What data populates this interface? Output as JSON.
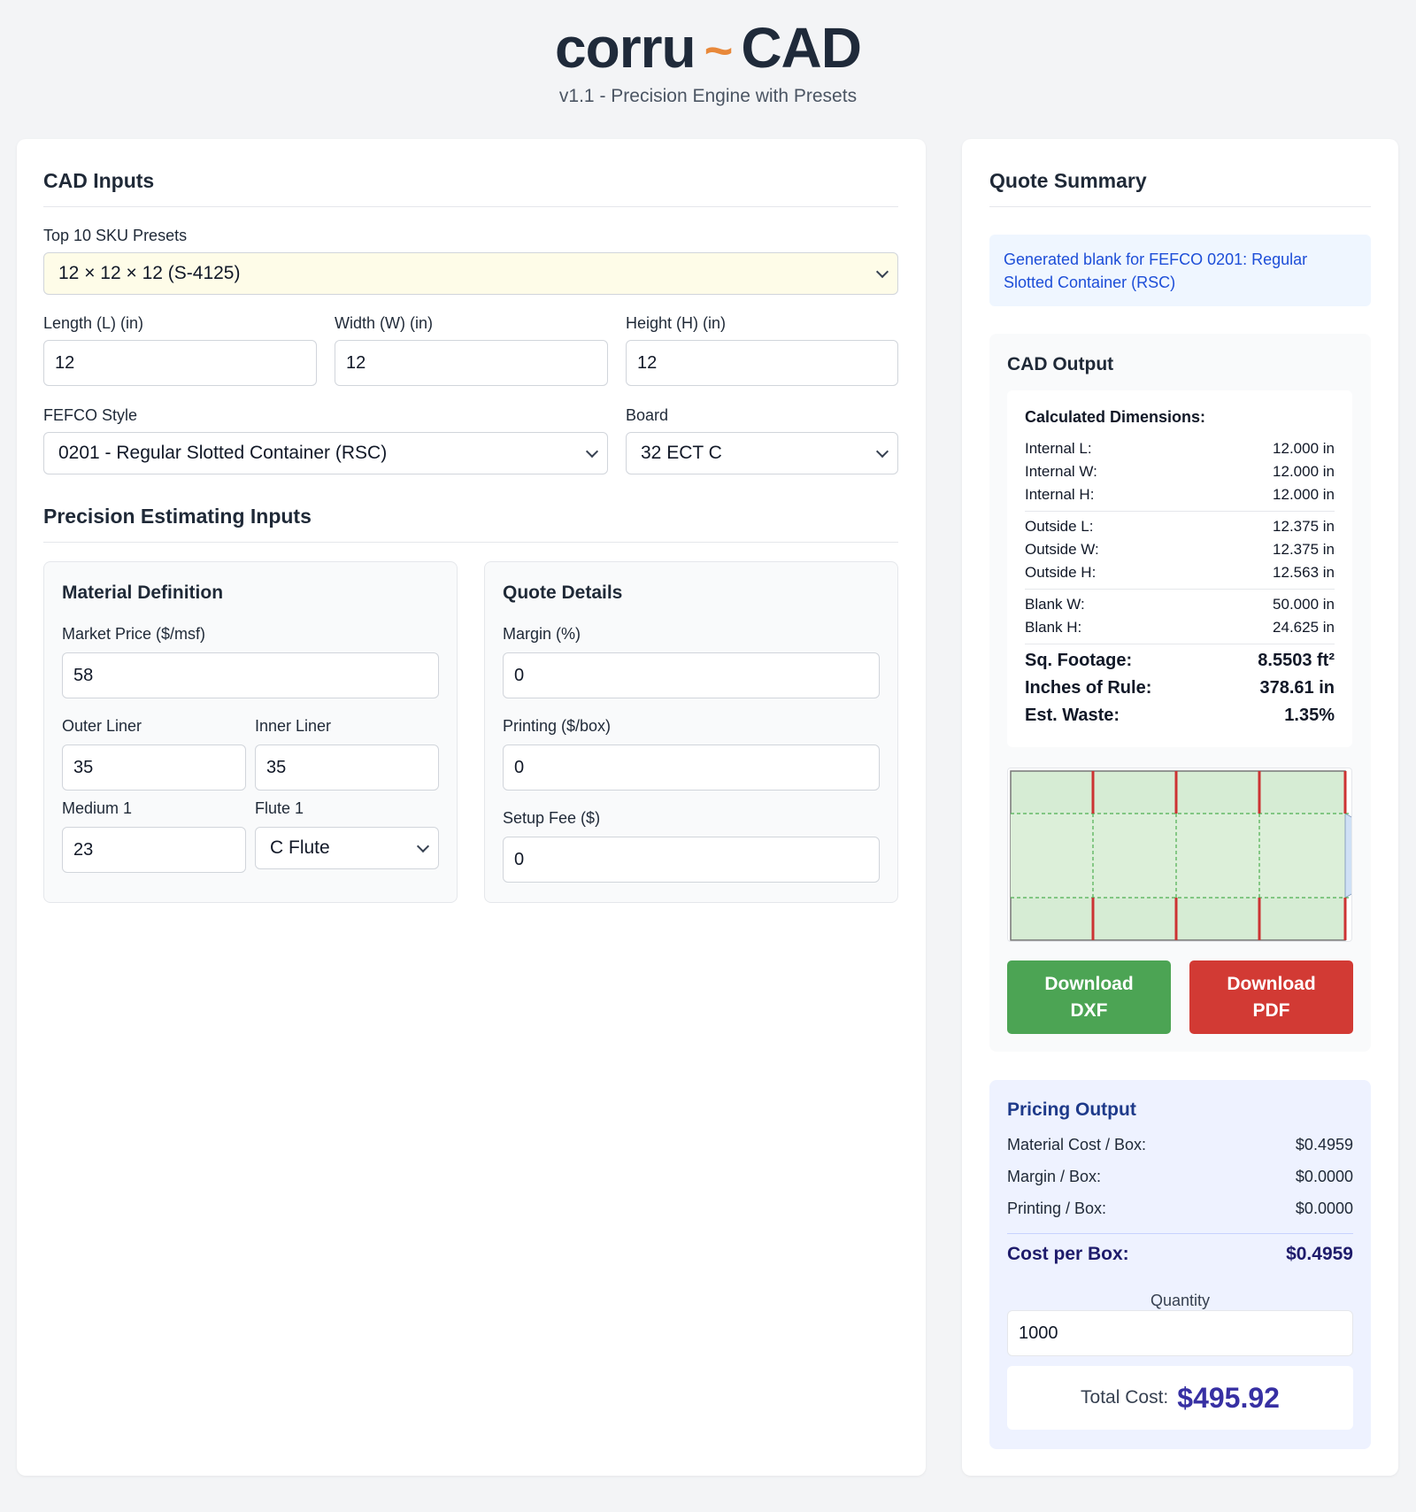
{
  "header": {
    "logo_part1": "corru",
    "logo_tilde": "~",
    "logo_part2": "CAD",
    "subtitle": "v1.1 - Precision Engine with Presets"
  },
  "cad_inputs": {
    "title": "CAD Inputs",
    "presets_label": "Top 10 SKU Presets",
    "preset_value": "12 × 12 × 12 (S-4125)",
    "length_label": "Length (L) (in)",
    "length_value": "12",
    "width_label": "Width (W) (in)",
    "width_value": "12",
    "height_label": "Height (H) (in)",
    "height_value": "12",
    "fefco_label": "FEFCO Style",
    "fefco_value": "0201 - Regular Slotted Container (RSC)",
    "board_label": "Board",
    "board_value": "32 ECT C"
  },
  "precision": {
    "title": "Precision Estimating Inputs",
    "material": {
      "title": "Material Definition",
      "market_price_label": "Market Price ($/msf)",
      "market_price_value": "58",
      "outer_liner_label": "Outer Liner",
      "outer_liner_value": "35",
      "inner_liner_label": "Inner Liner",
      "inner_liner_value": "35",
      "medium_label": "Medium 1",
      "medium_value": "23",
      "flute_label": "Flute 1",
      "flute_value": "C Flute"
    },
    "quote": {
      "title": "Quote Details",
      "margin_label": "Margin (%)",
      "margin_value": "0",
      "printing_label": "Printing ($/box)",
      "printing_value": "0",
      "setup_label": "Setup Fee ($)",
      "setup_value": "0"
    }
  },
  "summary": {
    "title": "Quote Summary",
    "info": "Generated blank for FEFCO 0201: Regular Slotted Container (RSC)",
    "cad_output": {
      "title": "CAD Output",
      "calc_title": "Calculated Dimensions:",
      "rows": [
        {
          "label": "Internal L:",
          "value": "12.000 in"
        },
        {
          "label": "Internal W:",
          "value": "12.000 in"
        },
        {
          "label": "Internal H:",
          "value": "12.000 in"
        },
        {
          "label": "Outside L:",
          "value": "12.375 in"
        },
        {
          "label": "Outside W:",
          "value": "12.375 in"
        },
        {
          "label": "Outside H:",
          "value": "12.563 in"
        },
        {
          "label": "Blank W:",
          "value": "50.000 in"
        },
        {
          "label": "Blank H:",
          "value": "24.625 in"
        }
      ],
      "bold_rows": [
        {
          "label": "Sq. Footage:",
          "value": "8.5503 ft²"
        },
        {
          "label": "Inches of Rule:",
          "value": "378.61 in"
        },
        {
          "label": "Est. Waste:",
          "value": "1.35%"
        }
      ],
      "download_dxf_line1": "Download",
      "download_dxf_line2": "DXF",
      "download_pdf_line1": "Download",
      "download_pdf_line2": "PDF"
    },
    "pricing": {
      "title": "Pricing Output",
      "rows": [
        {
          "label": "Material Cost / Box:",
          "value": "$0.4959"
        },
        {
          "label": "Margin / Box:",
          "value": "$0.0000"
        },
        {
          "label": "Printing / Box:",
          "value": "$0.0000"
        }
      ],
      "cost_label": "Cost per Box:",
      "cost_value": "$0.4959",
      "quantity_label": "Quantity",
      "quantity_value": "1000",
      "total_label": "Total Cost:",
      "total_value": "$495.92"
    }
  },
  "colors": {
    "accent_orange": "#e8883a",
    "panel_green": "#d6ecd4",
    "cut_red": "#cc3333",
    "fold_green": "#4caf50",
    "dxf_green": "#4ca454",
    "pdf_red": "#d23a34"
  }
}
